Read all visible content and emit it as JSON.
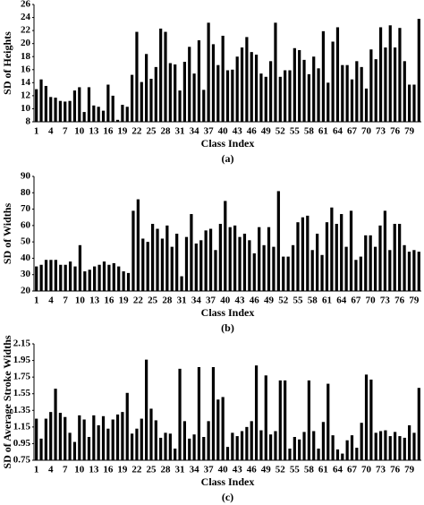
{
  "chart_data": [
    {
      "type": "bar",
      "y_label": "SD of  Heights",
      "x_label": "Class Index",
      "caption": "(a)",
      "color": "#000000",
      "grid": false,
      "ylim": [
        8,
        26
      ],
      "yticks": [
        8,
        10,
        12,
        14,
        16,
        18,
        20,
        22,
        24,
        26
      ],
      "categories": [
        1,
        null,
        null,
        4,
        null,
        null,
        7,
        null,
        null,
        10,
        null,
        null,
        13,
        null,
        null,
        16,
        null,
        null,
        19,
        null,
        null,
        22,
        null,
        null,
        25,
        null,
        null,
        28,
        null,
        null,
        31,
        null,
        null,
        34,
        null,
        null,
        37,
        null,
        null,
        40,
        null,
        null,
        43,
        null,
        null,
        46,
        null,
        null,
        49,
        null,
        null,
        52,
        null,
        null,
        55,
        null,
        null,
        58,
        null,
        null,
        61,
        null,
        null,
        64,
        null,
        null,
        67,
        null,
        null,
        70,
        null,
        null,
        73,
        null,
        null,
        76,
        null,
        null,
        79,
        null,
        null
      ],
      "values": [
        13,
        14.5,
        13.5,
        11.8,
        11.7,
        11.2,
        11.1,
        11.2,
        12.8,
        13.3,
        9.5,
        13.3,
        10.5,
        10.3,
        9.7,
        13.7,
        12,
        8.3,
        10.6,
        10.3,
        15.2,
        21.8,
        14.1,
        18.4,
        14.6,
        16.4,
        22.3,
        21.8,
        17,
        16.8,
        12.8,
        17.2,
        19.5,
        15.4,
        20.5,
        12.9,
        23.2,
        19.9,
        16.7,
        21.2,
        15.9,
        16,
        18,
        19.4,
        21,
        18.7,
        18.3,
        15.4,
        14.9,
        17.3,
        23.2,
        14.9,
        15.9,
        15.9,
        19.3,
        19,
        17.5,
        15.3,
        18,
        16.2,
        21.9,
        14,
        20.3,
        22.5,
        16.7,
        16.7,
        14.5,
        17.3,
        16.4,
        13.1,
        19.1,
        17.6,
        22.5,
        19.4,
        22.8,
        19.4,
        22.4,
        17.3,
        13.7,
        13.7,
        23.8
      ]
    },
    {
      "type": "bar",
      "y_label": "SD of Widths",
      "x_label": "Class Index",
      "caption": "(b)",
      "color": "#000000",
      "grid": false,
      "ylim": [
        20,
        90
      ],
      "yticks": [
        20,
        30,
        40,
        50,
        60,
        70,
        80,
        90
      ],
      "categories": [
        1,
        null,
        null,
        4,
        null,
        null,
        7,
        null,
        null,
        10,
        null,
        null,
        13,
        null,
        null,
        16,
        null,
        null,
        19,
        null,
        null,
        22,
        null,
        null,
        25,
        null,
        null,
        28,
        null,
        null,
        31,
        null,
        null,
        34,
        null,
        null,
        37,
        null,
        null,
        40,
        null,
        null,
        43,
        null,
        null,
        46,
        null,
        null,
        49,
        null,
        null,
        52,
        null,
        null,
        55,
        null,
        null,
        58,
        null,
        null,
        61,
        null,
        null,
        64,
        null,
        null,
        67,
        null,
        null,
        70,
        null,
        null,
        73,
        null,
        null,
        76,
        null,
        null,
        79,
        null
      ],
      "values": [
        35,
        36,
        39,
        39,
        39,
        36,
        36,
        38,
        35,
        48,
        32,
        33,
        35,
        36,
        38,
        36,
        37,
        35,
        32,
        31,
        69,
        76,
        52,
        50,
        61,
        58,
        52,
        60,
        47,
        55,
        29,
        53,
        67,
        49,
        51,
        57,
        58,
        45,
        61,
        75,
        59,
        60,
        53,
        55,
        51,
        43,
        59,
        48,
        59,
        47,
        81,
        41,
        41,
        48,
        62,
        65,
        66,
        45,
        55,
        42,
        62,
        71,
        61,
        67,
        47,
        69,
        39,
        41,
        54,
        54,
        47,
        60,
        69,
        45,
        61,
        61,
        48,
        44,
        45,
        44
      ]
    },
    {
      "type": "bar",
      "y_label": "SD of Average Stroke Widths",
      "x_label": "Class Index",
      "caption": "(c)",
      "color": "#000000",
      "grid": false,
      "ylim": [
        0.75,
        2.15
      ],
      "yticks": [
        0.75,
        0.95,
        1.15,
        1.35,
        1.55,
        1.75,
        1.95,
        2.15
      ],
      "categories": [
        1,
        null,
        null,
        4,
        null,
        null,
        7,
        null,
        null,
        10,
        null,
        null,
        13,
        null,
        null,
        16,
        null,
        null,
        19,
        null,
        null,
        22,
        null,
        null,
        25,
        null,
        null,
        28,
        null,
        null,
        31,
        null,
        null,
        34,
        null,
        null,
        37,
        null,
        null,
        40,
        null,
        null,
        43,
        null,
        null,
        46,
        null,
        null,
        49,
        null,
        null,
        52,
        null,
        null,
        55,
        null,
        null,
        58,
        null,
        null,
        61,
        null,
        null,
        64,
        null,
        null,
        67,
        null,
        null,
        70,
        null,
        null,
        73,
        null,
        null,
        76,
        null,
        null,
        79,
        null,
        null
      ],
      "values": [
        1.25,
        1.01,
        1.25,
        1.33,
        1.61,
        1.32,
        1.27,
        1.08,
        0.97,
        1.29,
        1.24,
        1.03,
        1.29,
        1.17,
        1.28,
        1.13,
        1.24,
        1.3,
        1.33,
        1.56,
        1.07,
        1.13,
        1.25,
        1.96,
        1.37,
        1.23,
        1.02,
        1.08,
        1.07,
        0.89,
        1.85,
        1.22,
        1.01,
        1.06,
        1.87,
        1.03,
        1.22,
        1.87,
        1.48,
        1.51,
        0.91,
        1.08,
        1.04,
        1.1,
        1.15,
        1.22,
        1.89,
        1.11,
        1.77,
        1.06,
        1.1,
        1.71,
        1.71,
        0.89,
        1.03,
        1,
        1.09,
        1.71,
        1.1,
        0.89,
        1.21,
        1.67,
        1.05,
        0.88,
        0.83,
        0.99,
        1.05,
        0.9,
        1.2,
        1.78,
        1.72,
        1.08,
        1.1,
        1.11,
        1.04,
        1.09,
        1.04,
        1.02,
        1.17,
        1.08,
        1.62
      ]
    }
  ]
}
